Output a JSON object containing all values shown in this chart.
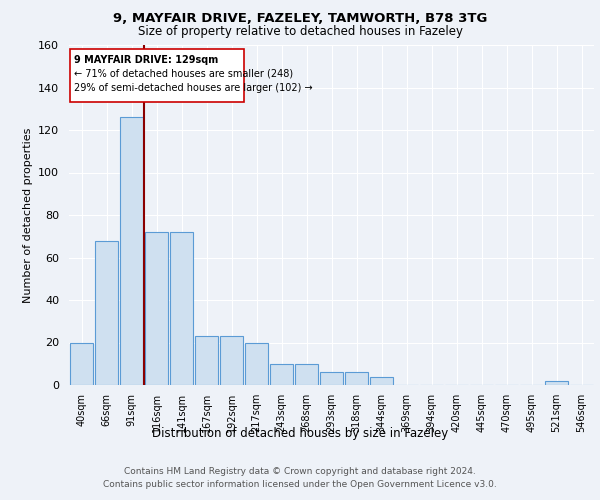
{
  "title1": "9, MAYFAIR DRIVE, FAZELEY, TAMWORTH, B78 3TG",
  "title2": "Size of property relative to detached houses in Fazeley",
  "xlabel": "Distribution of detached houses by size in Fazeley",
  "ylabel": "Number of detached properties",
  "categories": [
    "40sqm",
    "66sqm",
    "91sqm",
    "116sqm",
    "141sqm",
    "167sqm",
    "192sqm",
    "217sqm",
    "243sqm",
    "268sqm",
    "293sqm",
    "318sqm",
    "344sqm",
    "369sqm",
    "394sqm",
    "420sqm",
    "445sqm",
    "470sqm",
    "495sqm",
    "521sqm",
    "546sqm"
  ],
  "values": [
    20,
    68,
    126,
    72,
    72,
    23,
    23,
    20,
    10,
    10,
    6,
    6,
    4,
    0,
    0,
    0,
    0,
    0,
    0,
    2,
    0
  ],
  "bar_color": "#cfe0f0",
  "bar_edge_color": "#5b9bd5",
  "ylim": [
    0,
    160
  ],
  "yticks": [
    0,
    20,
    40,
    60,
    80,
    100,
    120,
    140,
    160
  ],
  "red_line_x": 2.5,
  "annotation_title": "9 MAYFAIR DRIVE: 129sqm",
  "annotation_line1": "← 71% of detached houses are smaller (248)",
  "annotation_line2": "29% of semi-detached houses are larger (102) →",
  "footer1": "Contains HM Land Registry data © Crown copyright and database right 2024.",
  "footer2": "Contains public sector information licensed under the Open Government Licence v3.0.",
  "bg_color": "#eef2f8",
  "plot_bg_color": "#eef2f8",
  "grid_color": "#ffffff",
  "ann_box_color": "#ffffff",
  "ann_edge_color": "#cc0000"
}
